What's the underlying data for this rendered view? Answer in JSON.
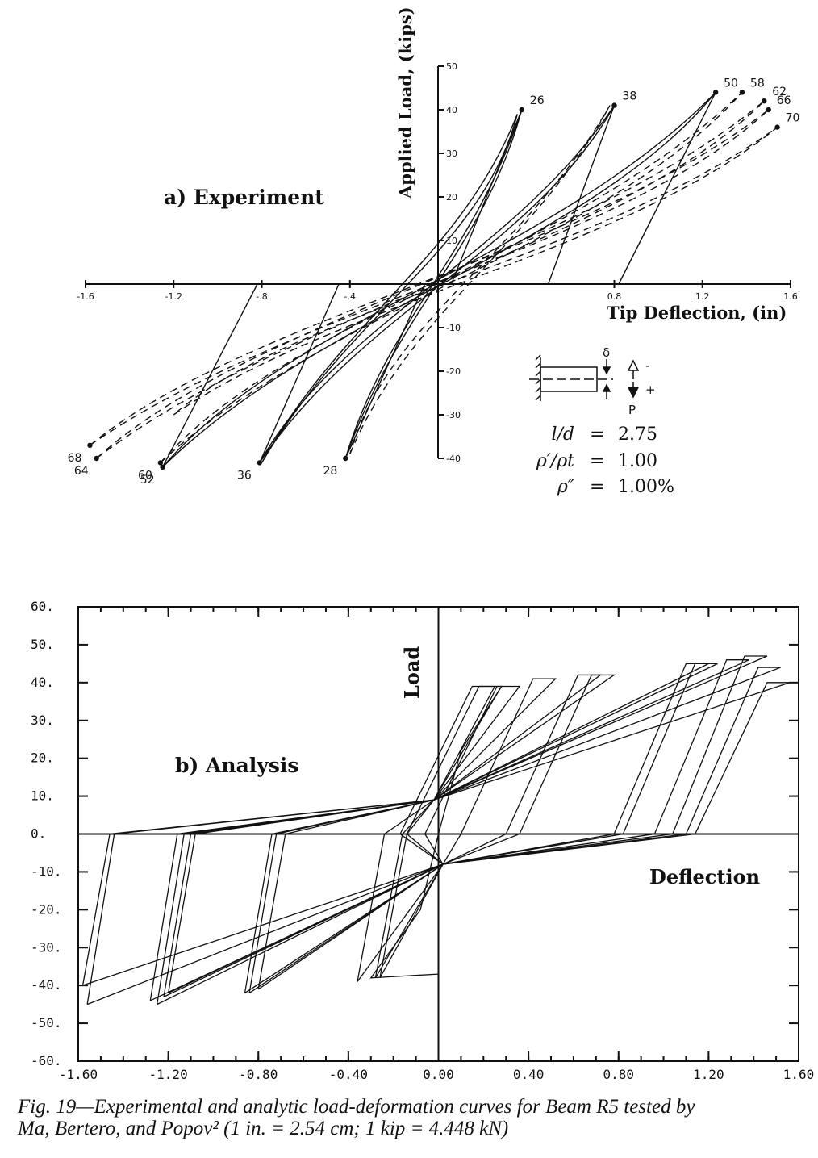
{
  "chart_data": [
    {
      "type": "line",
      "panel_title": "a) Experiment",
      "xlabel": "Tip Deflection, (in)",
      "ylabel": "Applied Load, (kips)",
      "xlim": [
        -1.6,
        1.6
      ],
      "ylim": [
        -40,
        50
      ],
      "x_ticks": [
        "-1.6",
        "-1.2",
        "-.8",
        "-.4",
        "0.8",
        "1.2",
        "1.6"
      ],
      "y_ticks": [
        "50",
        "40",
        "30",
        "20",
        "10",
        "-10",
        "-20",
        "-30",
        "-40"
      ],
      "grid": false,
      "point_labels": [
        {
          "label": "26",
          "x": 0.38,
          "y": 40
        },
        {
          "label": "38",
          "x": 0.8,
          "y": 41
        },
        {
          "label": "50",
          "x": 1.26,
          "y": 44
        },
        {
          "label": "58",
          "x": 1.38,
          "y": 44
        },
        {
          "label": "62",
          "x": 1.48,
          "y": 42
        },
        {
          "label": "66",
          "x": 1.5,
          "y": 40
        },
        {
          "label": "70",
          "x": 1.54,
          "y": 36
        },
        {
          "label": "28",
          "x": -0.42,
          "y": -40
        },
        {
          "label": "36",
          "x": -0.81,
          "y": -41
        },
        {
          "label": "52",
          "x": -1.25,
          "y": -42
        },
        {
          "label": "60",
          "x": -1.26,
          "y": -41
        },
        {
          "label": "64",
          "x": -1.55,
          "y": -40
        },
        {
          "label": "68",
          "x": -1.58,
          "y": -37
        }
      ],
      "inset": {
        "delta": "δ",
        "sign_up": "-",
        "sign_down": "+",
        "load": "P",
        "params": [
          {
            "name": "l/d",
            "value": "2.75"
          },
          {
            "name": "ρ′/ρt",
            "value": "1.00"
          },
          {
            "name": "ρ″",
            "value": "1.00%"
          }
        ]
      }
    },
    {
      "type": "line",
      "panel_title": "b) Analysis",
      "xlabel": "Deflection",
      "ylabel": "Load",
      "xlim": [
        -1.6,
        1.6
      ],
      "ylim": [
        -60,
        60
      ],
      "x_ticks": [
        "-1.60",
        "-1.20",
        "-0.80",
        "-0.40",
        "0.00",
        "0.40",
        "0.80",
        "1.20",
        "1.60"
      ],
      "y_ticks": [
        "60.",
        "50.",
        "40.",
        "30.",
        "20.",
        "10.",
        "0.",
        "-10.",
        "-20.",
        "-30.",
        "-40.",
        "-50.",
        "-60."
      ],
      "grid": false
    }
  ],
  "caption": {
    "line1": "Fig. 19—Experimental and analytic load-deformation curves for Beam R5 tested by",
    "line2": "Ma, Bertero, and Popov² (1 in. = 2.54 cm; 1 kip = 4.448 kN)"
  }
}
